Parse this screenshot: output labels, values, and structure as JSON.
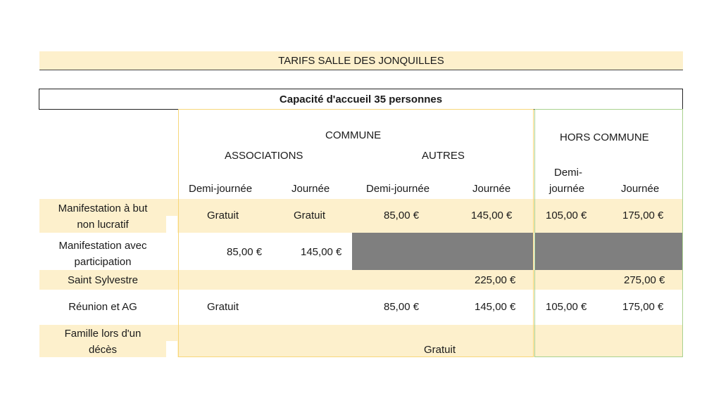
{
  "title": "TARIFS SALLE DES JONQUILLES",
  "capacity": "Capacité d'accueil 35 personnes",
  "headers": {
    "commune": "COMMUNE",
    "hors_commune": "HORS COMMUNE",
    "associations": "ASSOCIATIONS",
    "autres": "AUTRES",
    "demi_journee": "Demi-journée",
    "journee": "Journée",
    "hc_demi_line1": "Demi-",
    "hc_demi_line2": "journée"
  },
  "rows": [
    {
      "label_line1": "Manifestation à but",
      "label_line2": "non lucratif",
      "assoc_demi": "Gratuit",
      "assoc_jour": "Gratuit",
      "autres_demi": "85,00 €",
      "autres_jour": "145,00 €",
      "hc_demi": "105,00 €",
      "hc_jour": "175,00 €"
    },
    {
      "label_line1": "Manifestation avec",
      "label_line2": "participation",
      "assoc_demi": "85,00 €",
      "assoc_jour": "145,00 €"
    },
    {
      "label_line1": "Saint Sylvestre",
      "autres_jour": "225,00 €",
      "hc_jour": "275,00 €"
    },
    {
      "label_line1": "Réunion et AG",
      "assoc_demi": "Gratuit",
      "autres_demi": "85,00 €",
      "autres_jour": "145,00 €",
      "hc_demi": "105,00 €",
      "hc_jour": "175,00 €"
    },
    {
      "label_line1": "Famille lors d'un",
      "label_line2": "décès",
      "all": "Gratuit"
    }
  ]
}
